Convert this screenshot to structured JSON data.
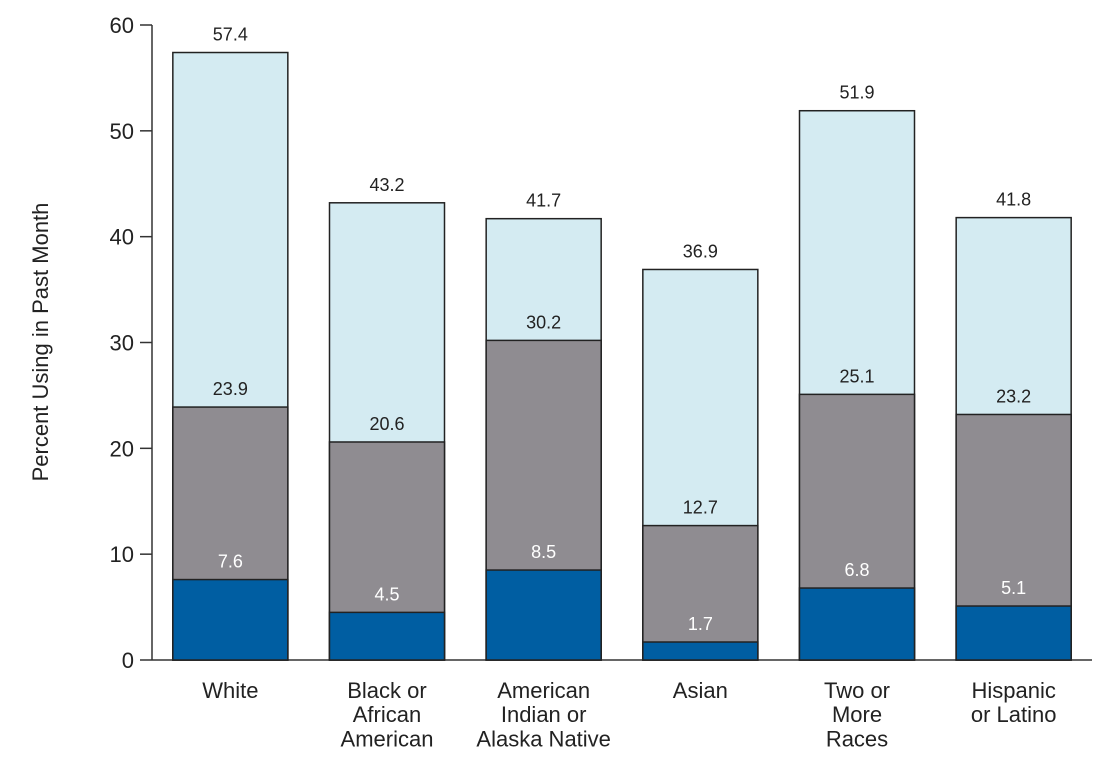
{
  "chart_data": {
    "type": "bar",
    "y_label": "Percent Using in Past Month",
    "categories": [
      "White",
      "Black or\nAfrican\nAmerican",
      "American\nIndian or\nAlaska Native",
      "Asian",
      "Two or\nMore\nRaces",
      "Hispanic\nor Latino"
    ],
    "series": [
      {
        "color": "#d4ebf2",
        "label_color": "#222222",
        "values": [
          57.4,
          43.2,
          41.7,
          36.9,
          51.9,
          41.8
        ]
      },
      {
        "color": "#8f8c91",
        "label_color": "#222222",
        "values": [
          23.9,
          20.6,
          30.2,
          12.7,
          25.1,
          23.2
        ]
      },
      {
        "color": "#005ea2",
        "label_color": "#ffffff",
        "values": [
          7.6,
          4.5,
          8.5,
          1.7,
          6.8,
          5.1
        ]
      }
    ],
    "ylim": [
      0,
      60
    ],
    "yticks": [
      0,
      10,
      20,
      30,
      40,
      50,
      60
    ]
  }
}
